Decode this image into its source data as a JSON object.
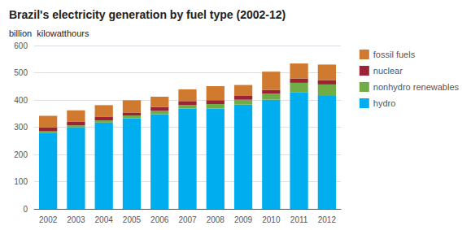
{
  "chart_data": {
    "type": "bar",
    "stacked": true,
    "title": "Brazil's electricity generation by fuel type (2002-12)",
    "ylabel": "billion  kilowatthours",
    "categories": [
      "2002",
      "2003",
      "2004",
      "2005",
      "2006",
      "2007",
      "2008",
      "2009",
      "2010",
      "2011",
      "2012"
    ],
    "series": [
      {
        "name": "hydro",
        "color": "#00AEEF",
        "values": [
          280,
          300,
          317,
          333,
          348,
          368,
          369,
          383,
          401,
          428,
          415
        ]
      },
      {
        "name": "nonhydro renewables",
        "color": "#70AD47",
        "values": [
          5,
          7,
          8,
          10,
          12,
          14,
          16,
          18,
          22,
          35,
          42
        ]
      },
      {
        "name": "nuclear",
        "color": "#9B2335",
        "values": [
          14,
          14,
          14,
          11,
          14,
          14,
          14,
          14,
          14,
          16,
          16
        ]
      },
      {
        "name": "fossil fuels",
        "color": "#D07A30",
        "values": [
          43,
          41,
          42,
          45,
          38,
          43,
          52,
          40,
          67,
          55,
          57
        ]
      }
    ],
    "ylim": [
      0,
      600
    ],
    "yticks": [
      0,
      100,
      200,
      300,
      400,
      500,
      600
    ],
    "grid": true,
    "legend": "right"
  }
}
